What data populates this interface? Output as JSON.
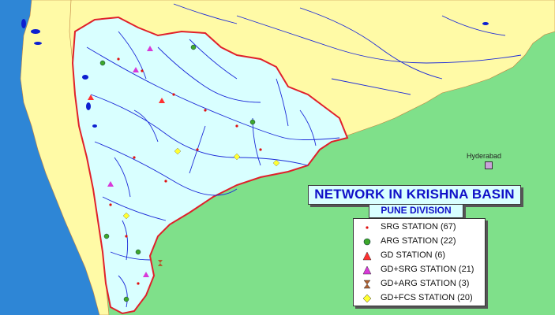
{
  "map": {
    "title": "NETWORK IN KRISHNA BASIN",
    "subtitle": "PUNE DIVISION",
    "city": "Hyderabad",
    "colors": {
      "sea": "#2e86d6",
      "land_outside": "#fffaa6",
      "land_lower": "#7fe08a",
      "basin": "#d9ffff",
      "boundary": "#e0202a",
      "rivers": "#1c2ad8",
      "reservoirs": "#0d1fd0"
    }
  },
  "legend": [
    {
      "symbol": "red-dot",
      "label": "SRG STATION (67)",
      "color": "#e01010"
    },
    {
      "symbol": "green-circle",
      "label": "ARG STATION (22)",
      "color": "#3ea82a"
    },
    {
      "symbol": "red-triangle",
      "label": "GD STATION (6)",
      "color": "#ff3030"
    },
    {
      "symbol": "magenta-triangle",
      "label": "GD+SRG STATION (21)",
      "color": "#d838d8"
    },
    {
      "symbol": "hourglass",
      "label": "GD+ARG STATION (3)",
      "color": "#b06030"
    },
    {
      "symbol": "yellow-diamond",
      "label": "GD+FCS STATION (20)",
      "color": "#ffff30"
    }
  ]
}
